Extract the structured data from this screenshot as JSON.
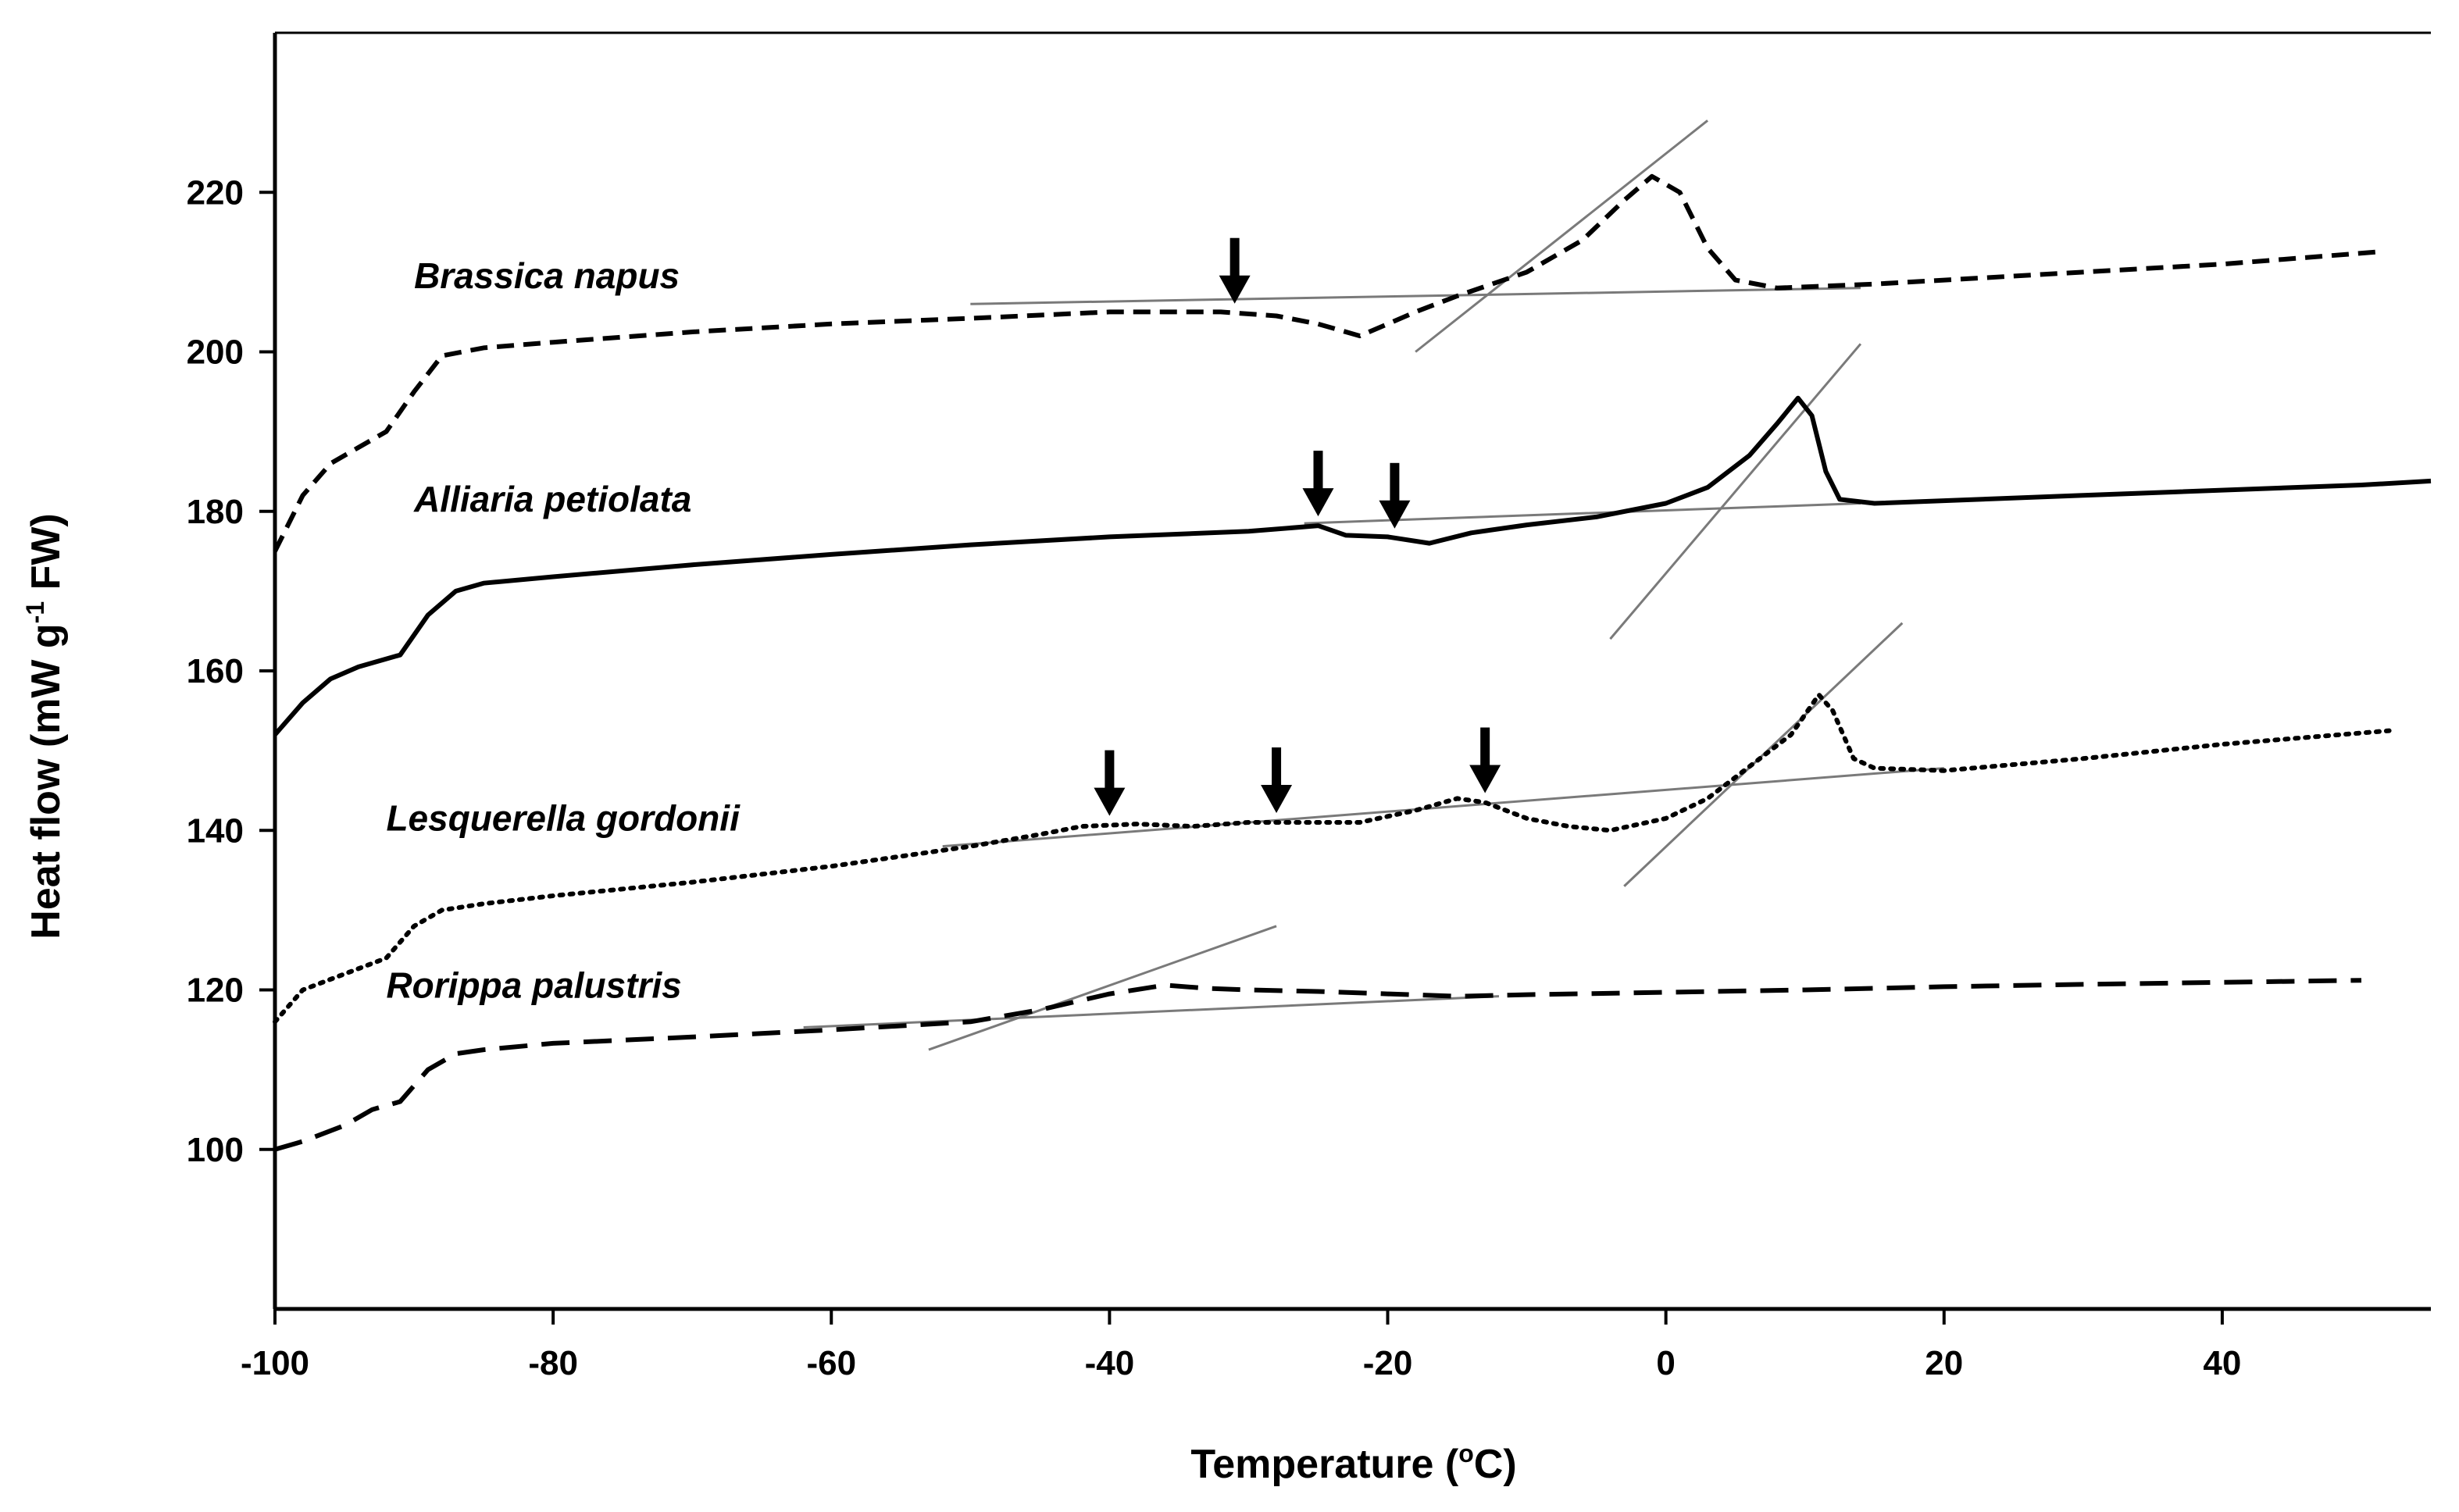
{
  "chart_data": {
    "type": "line",
    "title": "",
    "xlabel": "Temperature (",
    "xlabel_sup": "o",
    "xlabel_end": "C)",
    "ylabel": "Heat flow (mW g",
    "ylabel_sup": "-1",
    "ylabel_end": " FW)",
    "xlim": [
      -100,
      55
    ],
    "ylim": [
      80,
      240
    ],
    "xticks": [
      -100,
      -80,
      -60,
      -40,
      -20,
      0,
      20,
      40
    ],
    "xtick_labels": [
      "-100",
      "-80",
      "-60",
      "-40",
      "-20",
      "0",
      "20",
      "40"
    ],
    "yticks": [
      100,
      120,
      140,
      160,
      180,
      200,
      220
    ],
    "ytick_labels": [
      "100",
      "120",
      "140",
      "160",
      "180",
      "200",
      "220"
    ],
    "grid": false,
    "legend": "none",
    "series": [
      {
        "name": "Brassica napus",
        "style": "dashed",
        "label_at": [
          -90,
          208
        ],
        "points": [
          [
            -100,
            175
          ],
          [
            -98,
            182
          ],
          [
            -96,
            186
          ],
          [
            -94,
            188
          ],
          [
            -92,
            190
          ],
          [
            -90,
            195
          ],
          [
            -88,
            199.5
          ],
          [
            -85,
            200.5
          ],
          [
            -80,
            201.2
          ],
          [
            -70,
            202.5
          ],
          [
            -60,
            203.5
          ],
          [
            -50,
            204.2
          ],
          [
            -40,
            205
          ],
          [
            -32,
            205
          ],
          [
            -28,
            204.5
          ],
          [
            -25,
            203.5
          ],
          [
            -22,
            202
          ],
          [
            -20,
            203.5
          ],
          [
            -18,
            205
          ],
          [
            -15,
            207
          ],
          [
            -10,
            210
          ],
          [
            -6,
            214
          ],
          [
            -3,
            219
          ],
          [
            -1,
            222
          ],
          [
            1,
            220
          ],
          [
            3,
            213
          ],
          [
            5,
            209
          ],
          [
            8,
            208
          ],
          [
            15,
            208.5
          ],
          [
            25,
            209.5
          ],
          [
            40,
            211
          ],
          [
            51,
            212.5
          ]
        ],
        "tangents": [
          {
            "from": [
              -50,
              206
            ],
            "to": [
              14,
              208
            ]
          },
          {
            "from": [
              -18,
              200
            ],
            "to": [
              3,
              229
            ]
          }
        ],
        "arrows": [
          -31
        ]
      },
      {
        "name": "Alliaria petiolata",
        "style": "solid",
        "label_at": [
          -90,
          180
        ],
        "points": [
          [
            -100,
            152
          ],
          [
            -98,
            156
          ],
          [
            -96,
            159
          ],
          [
            -94,
            160.5
          ],
          [
            -91,
            162
          ],
          [
            -89,
            167
          ],
          [
            -87,
            170
          ],
          [
            -85,
            171
          ],
          [
            -80,
            171.8
          ],
          [
            -70,
            173.3
          ],
          [
            -60,
            174.6
          ],
          [
            -50,
            175.8
          ],
          [
            -40,
            176.8
          ],
          [
            -30,
            177.5
          ],
          [
            -25,
            178.2
          ],
          [
            -23,
            177
          ],
          [
            -20,
            176.8
          ],
          [
            -17,
            176
          ],
          [
            -14,
            177.3
          ],
          [
            -10,
            178.3
          ],
          [
            -5,
            179.3
          ],
          [
            0,
            181
          ],
          [
            3,
            183
          ],
          [
            6,
            187
          ],
          [
            8,
            191
          ],
          [
            9.5,
            194.2
          ],
          [
            10.5,
            192
          ],
          [
            11.5,
            185
          ],
          [
            12.5,
            181.5
          ],
          [
            15,
            181
          ],
          [
            30,
            182
          ],
          [
            50,
            183.3
          ],
          [
            55,
            183.8
          ]
        ],
        "tangents": [
          {
            "from": [
              -26,
              178.5
            ],
            "to": [
              14,
              181
            ]
          },
          {
            "from": [
              -4,
              164
            ],
            "to": [
              14,
              201
            ]
          }
        ],
        "arrows": [
          -25,
          -19.5
        ]
      },
      {
        "name": "Lesquerella gordonii",
        "style": "dotted",
        "label_at": [
          -92,
          140
        ],
        "points": [
          [
            -100,
            116
          ],
          [
            -98,
            120
          ],
          [
            -95,
            122
          ],
          [
            -92,
            124
          ],
          [
            -90,
            128
          ],
          [
            -88,
            130
          ],
          [
            -85,
            130.8
          ],
          [
            -80,
            131.8
          ],
          [
            -70,
            133.5
          ],
          [
            -60,
            135.5
          ],
          [
            -50,
            138
          ],
          [
            -45,
            139.5
          ],
          [
            -42,
            140.5
          ],
          [
            -38,
            140.8
          ],
          [
            -34,
            140.5
          ],
          [
            -30,
            141
          ],
          [
            -26,
            141
          ],
          [
            -22,
            141
          ],
          [
            -18,
            142.5
          ],
          [
            -15,
            144
          ],
          [
            -13,
            143.5
          ],
          [
            -10,
            141.5
          ],
          [
            -7,
            140.5
          ],
          [
            -4,
            140
          ],
          [
            0,
            141.5
          ],
          [
            3,
            144
          ],
          [
            6,
            148
          ],
          [
            9,
            152
          ],
          [
            11,
            157
          ],
          [
            12,
            155
          ],
          [
            13.5,
            149
          ],
          [
            15,
            147.8
          ],
          [
            20,
            147.5
          ],
          [
            30,
            149
          ],
          [
            40,
            150.8
          ],
          [
            52,
            152.5
          ]
        ],
        "tangents": [
          {
            "from": [
              -52,
              138
            ],
            "to": [
              20,
              147.8
            ]
          },
          {
            "from": [
              -3,
              133
            ],
            "to": [
              17,
              166
            ]
          }
        ],
        "arrows": [
          -40,
          -28,
          -13
        ]
      },
      {
        "name": "Rorippa palustris",
        "style": "long-dash",
        "label_at": [
          -92,
          119
        ],
        "points": [
          [
            -100,
            100
          ],
          [
            -98,
            101
          ],
          [
            -95,
            103
          ],
          [
            -93,
            105
          ],
          [
            -91,
            106
          ],
          [
            -89,
            110
          ],
          [
            -87,
            112
          ],
          [
            -85,
            112.5
          ],
          [
            -80,
            113.3
          ],
          [
            -70,
            114.1
          ],
          [
            -60,
            115
          ],
          [
            -55,
            115.5
          ],
          [
            -50,
            116
          ],
          [
            -45,
            117.5
          ],
          [
            -40,
            119.5
          ],
          [
            -36,
            120.6
          ],
          [
            -33,
            120.2
          ],
          [
            -30,
            120
          ],
          [
            -25,
            119.8
          ],
          [
            -20,
            119.5
          ],
          [
            -15,
            119.2
          ],
          [
            -10,
            119.4
          ],
          [
            0,
            119.7
          ],
          [
            10,
            120
          ],
          [
            20,
            120.4
          ],
          [
            30,
            120.7
          ],
          [
            50,
            121.2
          ]
        ],
        "tangents": [
          {
            "from": [
              -62,
              115.3
            ],
            "to": [
              -12,
              119.2
            ]
          },
          {
            "from": [
              -53,
              112.5
            ],
            "to": [
              -28,
              128
            ]
          }
        ],
        "arrows": []
      }
    ]
  }
}
